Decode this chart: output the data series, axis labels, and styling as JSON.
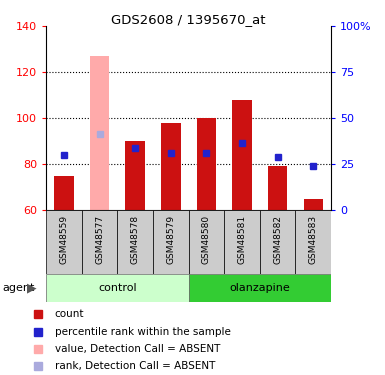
{
  "title": "GDS2608 / 1395670_at",
  "samples": [
    "GSM48559",
    "GSM48577",
    "GSM48578",
    "GSM48579",
    "GSM48580",
    "GSM48581",
    "GSM48582",
    "GSM48583"
  ],
  "bar_values": [
    75,
    127,
    90,
    98,
    100,
    108,
    79,
    65
  ],
  "bar_absent": [
    false,
    true,
    false,
    false,
    false,
    false,
    false,
    false
  ],
  "rank_values": [
    84,
    93,
    87,
    85,
    85,
    89,
    83,
    79
  ],
  "rank_absent": [
    false,
    true,
    false,
    false,
    false,
    false,
    false,
    false
  ],
  "ymin": 60,
  "ymax": 140,
  "yticks": [
    60,
    80,
    100,
    120,
    140
  ],
  "y2min": 0,
  "y2max": 100,
  "y2ticks": [
    0,
    25,
    50,
    75,
    100
  ],
  "bar_color_normal": "#cc1111",
  "bar_color_absent": "#ffaaaa",
  "rank_color_normal": "#2222cc",
  "rank_color_absent": "#aaaadd",
  "control_color_light": "#ccffcc",
  "control_color_dark": "#66dd66",
  "olanzapine_color": "#33cc33",
  "legend_items": [
    {
      "color": "#cc1111",
      "label": "count"
    },
    {
      "color": "#2222cc",
      "label": "percentile rank within the sample"
    },
    {
      "color": "#ffaaaa",
      "label": "value, Detection Call = ABSENT"
    },
    {
      "color": "#aaaadd",
      "label": "rank, Detection Call = ABSENT"
    }
  ]
}
